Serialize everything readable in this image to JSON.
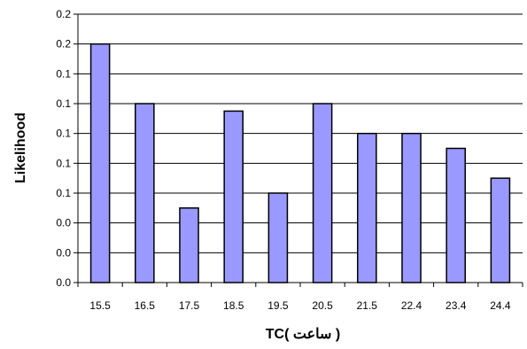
{
  "chart_data": {
    "type": "bar",
    "title": "",
    "xlabel": "TC(  ساعت )",
    "ylabel": "Likelihood",
    "categories": [
      "15.5",
      "16.5",
      "17.5",
      "18.5",
      "19.5",
      "20.5",
      "21.5",
      "22.4",
      "23.4",
      "24.4"
    ],
    "values": [
      0.16,
      0.12,
      0.05,
      0.115,
      0.06,
      0.12,
      0.1,
      0.1,
      0.09,
      0.07
    ],
    "ylim": [
      0,
      0.18
    ],
    "y_tick_values": [
      0,
      0.02,
      0.04,
      0.06,
      0.08,
      0.1,
      0.12,
      0.14,
      0.16,
      0.18
    ],
    "y_tick_labels": [
      "0.0",
      "0.0",
      "0.0",
      "0.1",
      "0.1",
      "0.1",
      "0.1",
      "0.1",
      "0.2",
      "0.2"
    ],
    "grid": true,
    "legend": "none",
    "colors": {
      "bar_fill": "#9999ff",
      "bar_stroke": "#000000",
      "grid": "#000000",
      "axis": "#000000",
      "background": "#ffffff"
    }
  }
}
